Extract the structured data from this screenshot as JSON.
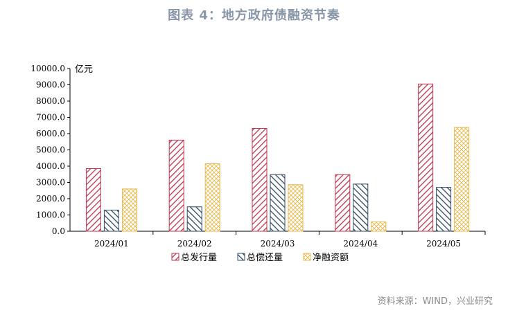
{
  "title": "图表 4：地方政府债融资节奏",
  "source": "资料来源：WIND，兴业研究",
  "chart_data": {
    "type": "bar",
    "unit": "亿元",
    "categories": [
      "2024/01",
      "2024/02",
      "2024/03",
      "2024/04",
      "2024/05"
    ],
    "series": [
      {
        "name": "总发行量",
        "values": [
          3850,
          5600,
          6320,
          3480,
          9050
        ],
        "color": "#c0344b",
        "pattern": "diag-right"
      },
      {
        "name": "总偿还量",
        "values": [
          1300,
          1500,
          3480,
          2900,
          2700
        ],
        "color": "#2f4a5e",
        "pattern": "diag-left"
      },
      {
        "name": "净融资额",
        "values": [
          2600,
          4150,
          2860,
          580,
          6380
        ],
        "color": "#e8b84a",
        "pattern": "cross"
      }
    ],
    "ylim": [
      0,
      10000
    ],
    "yticks": [
      "0.0",
      "1000.0",
      "2000.0",
      "3000.0",
      "4000.0",
      "5000.0",
      "6000.0",
      "7000.0",
      "8000.0",
      "9000.0",
      "10000.0"
    ],
    "legend": "bottom",
    "grid": false
  }
}
